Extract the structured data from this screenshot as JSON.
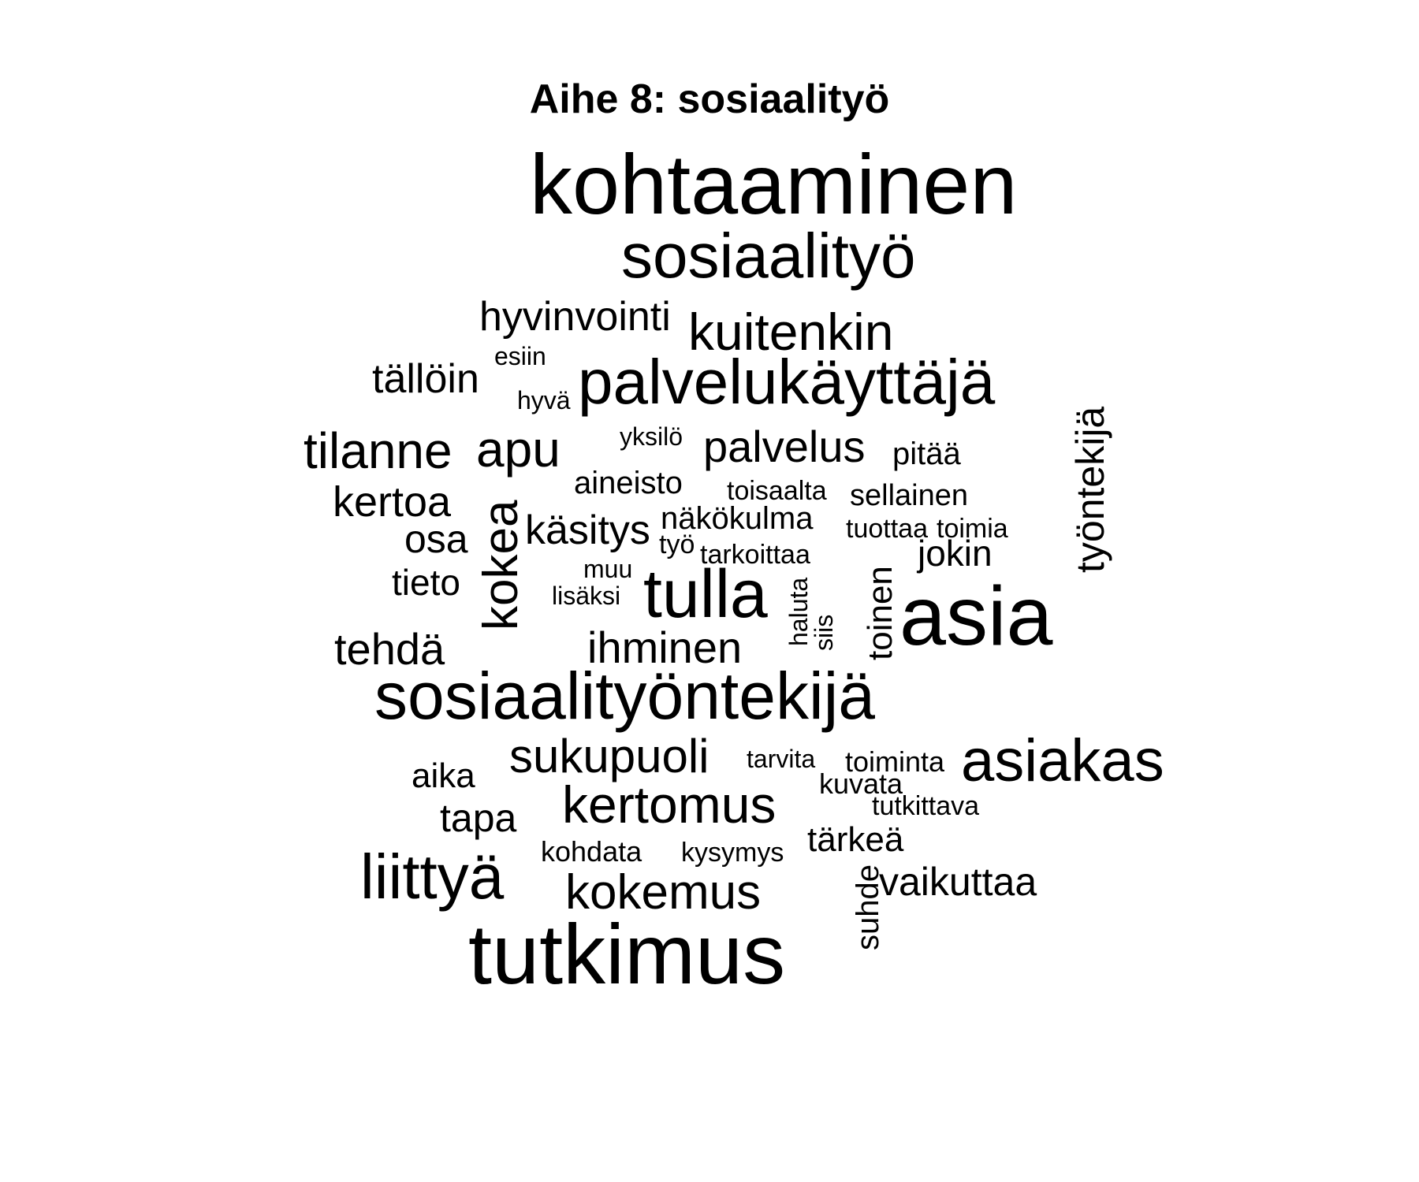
{
  "chart_data": {
    "type": "wordcloud",
    "title": "Aihe 8: sosiaalityö",
    "color": "#000000",
    "words": [
      {
        "text": "kohtaaminen",
        "weight": 100,
        "rotated": false
      },
      {
        "text": "tutkimus",
        "weight": 90,
        "rotated": false
      },
      {
        "text": "asia",
        "weight": 88,
        "rotated": false
      },
      {
        "text": "sosiaalityöntekijä",
        "weight": 82,
        "rotated": false
      },
      {
        "text": "sosiaalityö",
        "weight": 80,
        "rotated": false
      },
      {
        "text": "palvelukäyttäjä",
        "weight": 72,
        "rotated": false
      },
      {
        "text": "tulla",
        "weight": 72,
        "rotated": false
      },
      {
        "text": "asiakas",
        "weight": 70,
        "rotated": false
      },
      {
        "text": "liittyä",
        "weight": 68,
        "rotated": false
      },
      {
        "text": "kokea",
        "weight": 60,
        "rotated": true
      },
      {
        "text": "kuitenkin",
        "weight": 60,
        "rotated": false
      },
      {
        "text": "tilanne",
        "weight": 58,
        "rotated": false
      },
      {
        "text": "apu",
        "weight": 58,
        "rotated": false
      },
      {
        "text": "kertomus",
        "weight": 58,
        "rotated": false
      },
      {
        "text": "sukupuoli",
        "weight": 56,
        "rotated": false
      },
      {
        "text": "työntekijä",
        "weight": 50,
        "rotated": true
      },
      {
        "text": "palvelus",
        "weight": 50,
        "rotated": false
      },
      {
        "text": "tehdä",
        "weight": 50,
        "rotated": false
      },
      {
        "text": "ihminen",
        "weight": 50,
        "rotated": false
      },
      {
        "text": "kokemus",
        "weight": 50,
        "rotated": false
      },
      {
        "text": "hyvinvointi",
        "weight": 46,
        "rotated": false
      },
      {
        "text": "kertoa",
        "weight": 46,
        "rotated": false
      },
      {
        "text": "käsitys",
        "weight": 46,
        "rotated": false
      },
      {
        "text": "tällöin",
        "weight": 46,
        "rotated": false
      },
      {
        "text": "toinen",
        "weight": 44,
        "rotated": true
      },
      {
        "text": "osa",
        "weight": 44,
        "rotated": false
      },
      {
        "text": "tapa",
        "weight": 44,
        "rotated": false
      },
      {
        "text": "vaikuttaa",
        "weight": 42,
        "rotated": false
      },
      {
        "text": "tieto",
        "weight": 40,
        "rotated": false
      },
      {
        "text": "tärkeä",
        "weight": 40,
        "rotated": false
      },
      {
        "text": "aika",
        "weight": 40,
        "rotated": false
      },
      {
        "text": "jokin",
        "weight": 40,
        "rotated": false
      },
      {
        "text": "suhde",
        "weight": 38,
        "rotated": true
      },
      {
        "text": "aineisto",
        "weight": 36,
        "rotated": false
      },
      {
        "text": "näkökulma",
        "weight": 36,
        "rotated": false
      },
      {
        "text": "sellainen",
        "weight": 36,
        "rotated": false
      },
      {
        "text": "pitää",
        "weight": 36,
        "rotated": false
      },
      {
        "text": "toiminta",
        "weight": 32,
        "rotated": false
      },
      {
        "text": "kohdata",
        "weight": 32,
        "rotated": false
      },
      {
        "text": "kuvata",
        "weight": 32,
        "rotated": false
      },
      {
        "text": "toisaalta",
        "weight": 32,
        "rotated": false
      },
      {
        "text": "tuottaa",
        "weight": 32,
        "rotated": false
      },
      {
        "text": "toimia",
        "weight": 32,
        "rotated": false
      },
      {
        "text": "tarkoittaa",
        "weight": 32,
        "rotated": false
      },
      {
        "text": "tarvita",
        "weight": 30,
        "rotated": false
      },
      {
        "text": "kysymys",
        "weight": 30,
        "rotated": false
      },
      {
        "text": "haluta",
        "weight": 30,
        "rotated": true
      },
      {
        "text": "siis",
        "weight": 30,
        "rotated": true
      },
      {
        "text": "tutkittava",
        "weight": 30,
        "rotated": false
      },
      {
        "text": "muu",
        "weight": 30,
        "rotated": false
      },
      {
        "text": "lisäksi",
        "weight": 30,
        "rotated": false
      },
      {
        "text": "työ",
        "weight": 30,
        "rotated": false
      },
      {
        "text": "esiin",
        "weight": 30,
        "rotated": false
      },
      {
        "text": "hyvä",
        "weight": 30,
        "rotated": false
      },
      {
        "text": "yksilö",
        "weight": 30,
        "rotated": false
      }
    ]
  }
}
